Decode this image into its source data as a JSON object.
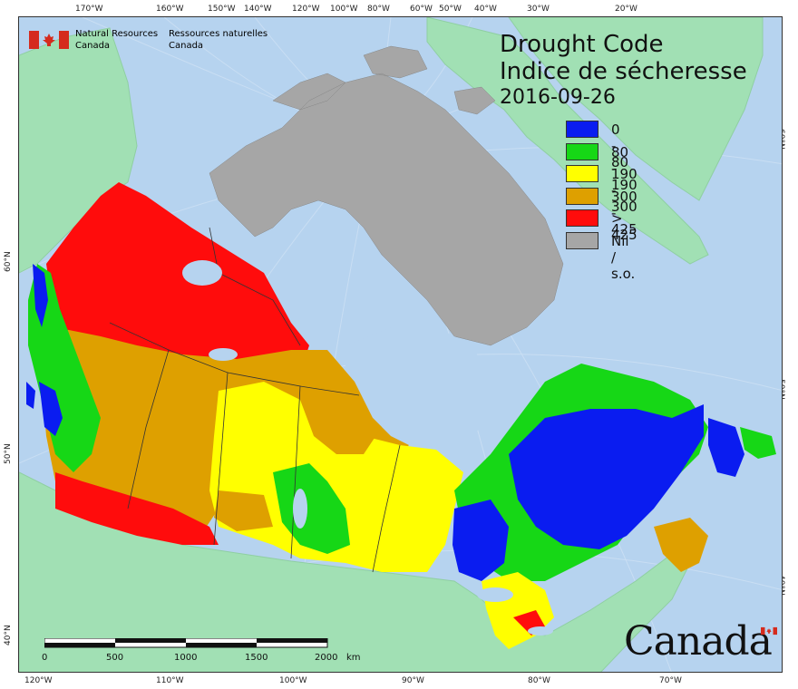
{
  "title_en": "Drought Code",
  "title_fr": "Indice de sécheresse",
  "date": "2016-09-26",
  "agency_en_line1": "Natural Resources",
  "agency_en_line2": "Canada",
  "agency_fr_line1": "Ressources naturelles",
  "agency_fr_line2": "Canada",
  "wordmark": "Canada",
  "legend": [
    {
      "label": "0 - 80",
      "color": "#0a1cf0"
    },
    {
      "label": "80 - 190",
      "color": "#16d716"
    },
    {
      "label": "190 - 300",
      "color": "#ffff00"
    },
    {
      "label": "300 - 425",
      "color": "#dea000"
    },
    {
      "label": "> 425",
      "color": "#ff0c0c"
    },
    {
      "label": "Nil / s.o.",
      "color": "#a6a6a6"
    }
  ],
  "top_longitudes": [
    "170°W",
    "160°W",
    "150°W",
    "140°W",
    "120°W",
    "100°W",
    "80°W",
    "60°W",
    "50°W",
    "40°W",
    "30°W",
    "20°W"
  ],
  "bottom_longitudes": [
    "120°W",
    "110°W",
    "100°W",
    "90°W",
    "80°W",
    "70°W"
  ],
  "left_latitudes": [
    "60°N",
    "50°N",
    "40°N"
  ],
  "right_latitudes": [
    "60°N",
    "50°N",
    "40°N"
  ],
  "scale": {
    "ticks": [
      "0",
      "500",
      "1000",
      "1500",
      "2000"
    ],
    "unit": "km"
  },
  "colors": {
    "ocean": "#b6d3ef",
    "land_other": "#a1e0b4",
    "nil": "#a6a6a6",
    "border": "#333333"
  }
}
